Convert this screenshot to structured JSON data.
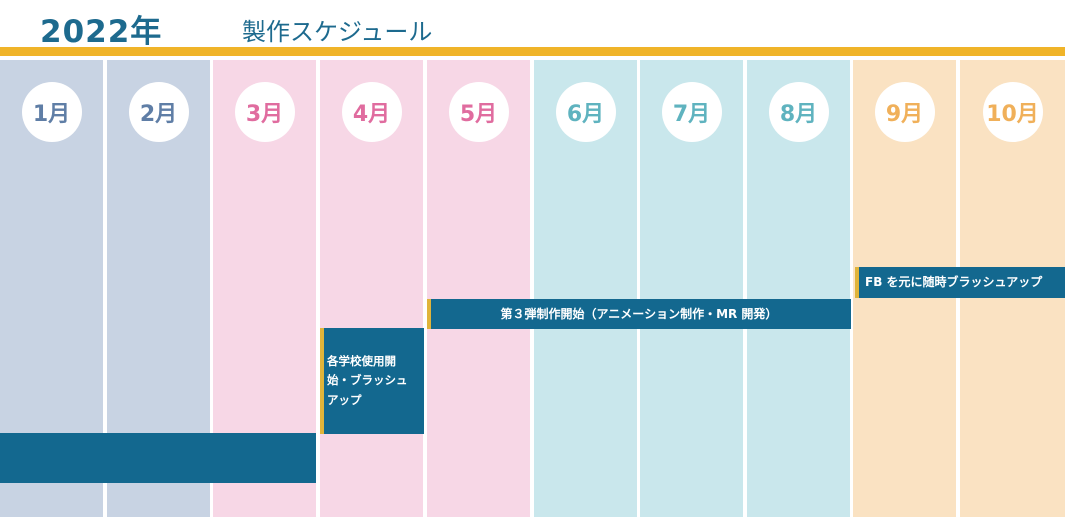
{
  "header": {
    "year": "2022年",
    "subtitle": "製作スケジュール"
  },
  "colors": {
    "title": "#1d6a8e",
    "top_bar": "#f0b429",
    "task_bar": "#13688f",
    "task_accent": "#e0b43a",
    "text_white": "#ffffff"
  },
  "months": [
    {
      "label": "1月",
      "bg": "#c8d3e3",
      "text": "#5f7ea6"
    },
    {
      "label": "2月",
      "bg": "#c8d3e3",
      "text": "#5f7ea6"
    },
    {
      "label": "3月",
      "bg": "#f7d7e6",
      "text": "#e06c9f"
    },
    {
      "label": "4月",
      "bg": "#f7d7e6",
      "text": "#e06c9f"
    },
    {
      "label": "5月",
      "bg": "#f7d7e6",
      "text": "#e06c9f"
    },
    {
      "label": "6月",
      "bg": "#c9e7ec",
      "text": "#5fb3bf"
    },
    {
      "label": "7月",
      "bg": "#c9e7ec",
      "text": "#5fb3bf"
    },
    {
      "label": "8月",
      "bg": "#c9e7ec",
      "text": "#5fb3bf"
    },
    {
      "label": "9月",
      "bg": "#fae2c2",
      "text": "#f0b05a"
    },
    {
      "label": "10月",
      "bg": "#fae2c2",
      "text": "#f0b05a"
    }
  ],
  "tasks": [
    {
      "label": "",
      "start_month": 1,
      "end_month": 3
    },
    {
      "label": "各学校使用開始・ブラッシュアップ",
      "start_month": 4,
      "end_month": 4
    },
    {
      "label": "第３弾制作開始（アニメーション制作・MR 開発）",
      "start_month": 5,
      "end_month": 8
    },
    {
      "label": "FB を元に随時ブラッシュアップ",
      "start_month": 9,
      "end_month": 10
    }
  ]
}
